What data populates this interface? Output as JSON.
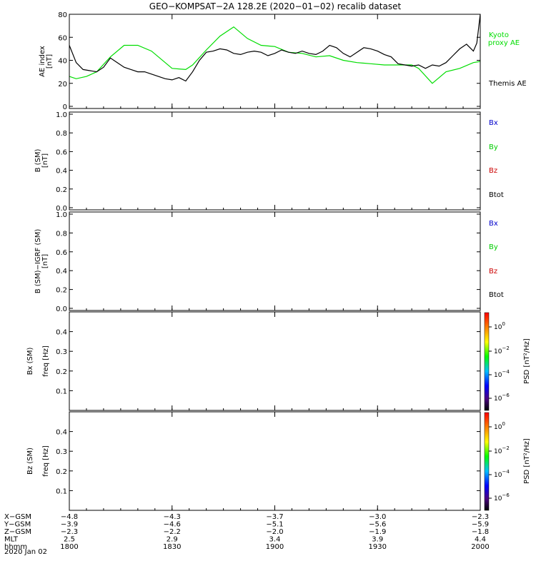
{
  "title": "GEO−KOMPSAT−2A 128.2E (2020−01−02) recalib dataset",
  "colors": {
    "kyoto": "#00dd00",
    "themis": "#000000",
    "bx": "#0000cc",
    "by": "#00cc00",
    "bz": "#cc0000",
    "btot": "#000000"
  },
  "chart_data": [
    {
      "type": "line",
      "ylabel": "AE index",
      "yunit": "[nT]",
      "ylim": [
        0,
        80
      ],
      "yticks": [
        "0",
        "20",
        "40",
        "60",
        "80"
      ],
      "xlim": [
        0,
        120
      ],
      "legend": [
        "Kyoto proxy AE",
        "Themis AE"
      ],
      "series": [
        {
          "name": "Kyoto proxy AE",
          "color": "#00dd00",
          "x": [
            0,
            2,
            5,
            8,
            12,
            16,
            20,
            24,
            30,
            34,
            36,
            40,
            44,
            48,
            52,
            56,
            60,
            64,
            68,
            72,
            76,
            80,
            84,
            88,
            92,
            96,
            100,
            102,
            106,
            110,
            114,
            118,
            120
          ],
          "y": [
            26,
            24,
            26,
            30,
            43,
            53,
            53,
            48,
            33,
            32,
            36,
            49,
            61,
            69,
            59,
            53,
            52,
            47,
            46,
            43,
            44,
            40,
            38,
            37,
            36,
            36,
            36,
            33,
            20,
            30,
            33,
            38,
            39
          ]
        },
        {
          "name": "Themis AE",
          "color": "#000000",
          "x": [
            0,
            2,
            4,
            6,
            8,
            10,
            12,
            14,
            16,
            18,
            20,
            22,
            24,
            26,
            28,
            30,
            32,
            34,
            36,
            38,
            40,
            42,
            44,
            46,
            48,
            50,
            52,
            54,
            56,
            58,
            60,
            62,
            64,
            66,
            68,
            70,
            72,
            74,
            76,
            78,
            80,
            82,
            84,
            86,
            88,
            90,
            92,
            94,
            96,
            98,
            100,
            102,
            104,
            106,
            108,
            110,
            112,
            114,
            116,
            118,
            119,
            120
          ],
          "y": [
            53,
            38,
            32,
            31,
            30,
            34,
            42,
            38,
            34,
            32,
            30,
            30,
            28,
            26,
            24,
            23,
            25,
            22,
            30,
            40,
            47,
            48,
            50,
            49,
            46,
            45,
            47,
            48,
            47,
            44,
            46,
            49,
            47,
            46,
            48,
            46,
            45,
            48,
            53,
            51,
            46,
            43,
            47,
            51,
            50,
            48,
            45,
            43,
            37,
            36,
            35,
            36,
            33,
            36,
            35,
            38,
            44,
            50,
            54,
            48,
            55,
            80
          ]
        }
      ]
    },
    {
      "type": "line",
      "ylabel": "B (SM)",
      "yunit": "[nT]",
      "ylim": [
        0,
        1
      ],
      "yticks": [
        "0.0",
        "0.2",
        "0.4",
        "0.6",
        "0.8",
        "1.0"
      ],
      "legend": [
        "Bx",
        "By",
        "Bz",
        "Btot"
      ],
      "series": []
    },
    {
      "type": "line",
      "ylabel": "B (SM)−IGRF (SM)",
      "yunit": "[nT]",
      "ylim": [
        0,
        1
      ],
      "yticks": [
        "0.0",
        "0.2",
        "0.4",
        "0.6",
        "0.8",
        "1.0"
      ],
      "legend": [
        "Bx",
        "By",
        "Bz",
        "Btot"
      ],
      "series": []
    },
    {
      "type": "heatmap",
      "ylabel": "Bx (SM)",
      "yunit": "freq [Hz]",
      "yticks": [
        "0.1",
        "0.2",
        "0.3",
        "0.4"
      ],
      "colorbar_label": "PSD [nT²/Hz]",
      "colorbar_ticks": [
        {
          "base": "10",
          "exp": "0"
        },
        {
          "base": "10",
          "exp": "−2"
        },
        {
          "base": "10",
          "exp": "−4"
        },
        {
          "base": "10",
          "exp": "−6"
        }
      ]
    },
    {
      "type": "heatmap",
      "ylabel": "Bz (SM)",
      "yunit": "freq [Hz]",
      "yticks": [
        "0.1",
        "0.2",
        "0.3",
        "0.4"
      ],
      "colorbar_label": "PSD [nT²/Hz]",
      "colorbar_ticks": [
        {
          "base": "10",
          "exp": "0"
        },
        {
          "base": "10",
          "exp": "−2"
        },
        {
          "base": "10",
          "exp": "−4"
        },
        {
          "base": "10",
          "exp": "−6"
        }
      ]
    }
  ],
  "xaxis": {
    "rows": [
      {
        "label": "X−GSM",
        "values": [
          "−4.8",
          "−4.3",
          "−3.7",
          "−3.0",
          "−2.3"
        ]
      },
      {
        "label": "Y−GSM",
        "values": [
          "−3.9",
          "−4.6",
          "−5.1",
          "−5.6",
          "−5.9"
        ]
      },
      {
        "label": "Z−GSM",
        "values": [
          "−2.3",
          "−2.2",
          "−2.0",
          "−1.9",
          "−1.8"
        ]
      },
      {
        "label": "MLT",
        "values": [
          "2.5",
          "2.9",
          "3.4",
          "3.9",
          "4.4"
        ]
      },
      {
        "label": "hhmm",
        "values": [
          "1800",
          "1830",
          "1900",
          "1930",
          "2000"
        ]
      }
    ],
    "date": "2020 Jan 02"
  }
}
